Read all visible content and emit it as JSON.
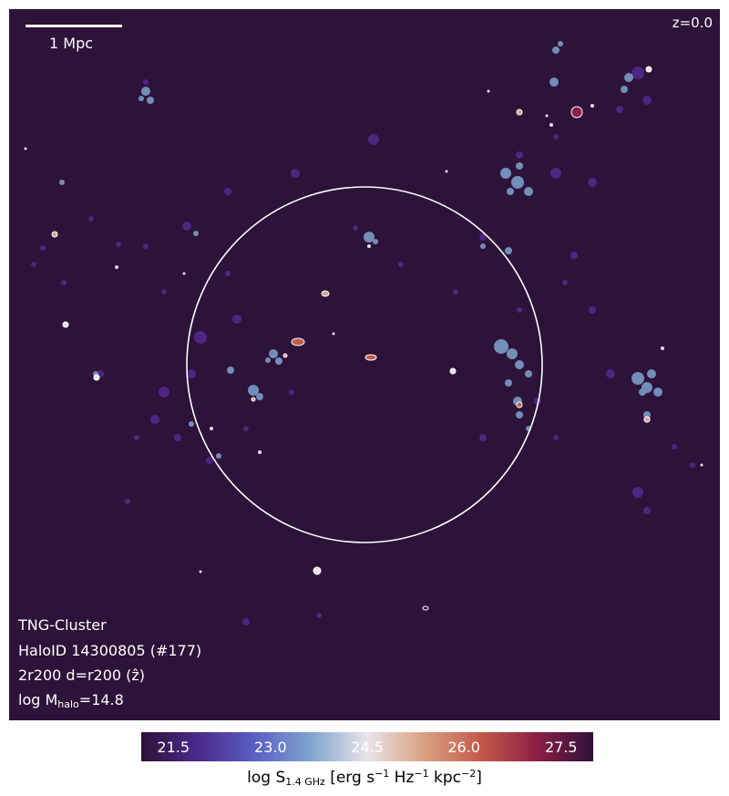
{
  "scale_bar": {
    "label": "1 Mpc"
  },
  "redshift": "z=0.0",
  "info": {
    "simulation": "TNG-Cluster",
    "halo": "HaloID 14300805 (#177)",
    "projection": "2r200 d=r200 (ẑ)",
    "mass_prefix": "log M",
    "mass_sub": "halo",
    "mass_value": "=14.8"
  },
  "colorbar": {
    "ticks": [
      "21.5",
      "23.0",
      "24.5",
      "26.0",
      "27.5"
    ],
    "range": [
      21.0,
      28.0
    ],
    "colors": [
      "#2d1239",
      "#4a2a8a",
      "#5b5ec2",
      "#7fa4d0",
      "#e9e4ea",
      "#d9a283",
      "#c45a4a",
      "#8c1f45",
      "#2d1239"
    ],
    "label": {
      "p1": "log S",
      "sub": "1.4 GHz",
      "p2": " [erg s",
      "sup1": "−1",
      "p3": " Hz",
      "sup2": "−1",
      "p4": " kpc",
      "sup3": "−2",
      "p5": "]"
    }
  },
  "background_color": "#2d1239",
  "circle_color": "#ffffff"
}
